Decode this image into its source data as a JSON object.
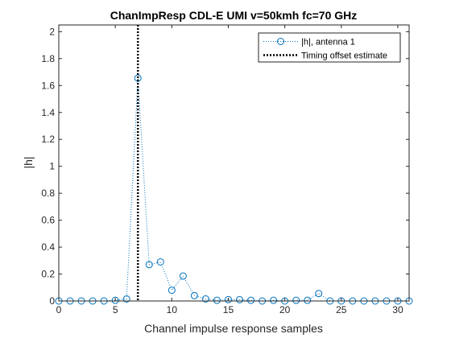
{
  "chart_data": {
    "type": "scatter",
    "title": "ChanImpResp CDL-E UMI v=50kmh fc=70 GHz",
    "xlabel": "Channel impulse response samples",
    "ylabel": "|h|",
    "xlim": [
      0,
      31
    ],
    "ylim": [
      0,
      2.05
    ],
    "x_ticks": [
      "0",
      "5",
      "10",
      "15",
      "20",
      "25",
      "30"
    ],
    "y_ticks": [
      "0",
      "0.2",
      "0.4",
      "0.6",
      "0.8",
      "1",
      "1.2",
      "1.4",
      "1.6",
      "1.8",
      "2"
    ],
    "grid": false,
    "legend_position": "top-right",
    "series": [
      {
        "name": "|h|, antenna 1",
        "style": "dotted line with circle markers",
        "color": "#0072BD",
        "x": [
          0,
          1,
          2,
          3,
          4,
          5,
          6,
          7,
          8,
          9,
          10,
          11,
          12,
          13,
          14,
          15,
          16,
          17,
          18,
          19,
          20,
          21,
          22,
          23,
          24,
          25,
          26,
          27,
          28,
          29,
          30,
          31
        ],
        "y": [
          0,
          0,
          0,
          0,
          0,
          0.005,
          0.015,
          1.655,
          0.27,
          0.29,
          0.08,
          0.185,
          0.04,
          0.015,
          0.005,
          0.01,
          0.01,
          0.005,
          0,
          0.005,
          0,
          0.005,
          0.005,
          0.055,
          0,
          0,
          0,
          0,
          0,
          0,
          0,
          0
        ]
      }
    ],
    "vertical_lines": [
      {
        "name": "Timing offset estimate",
        "x": 7,
        "color": "#000000",
        "style": "dotted"
      }
    ]
  }
}
